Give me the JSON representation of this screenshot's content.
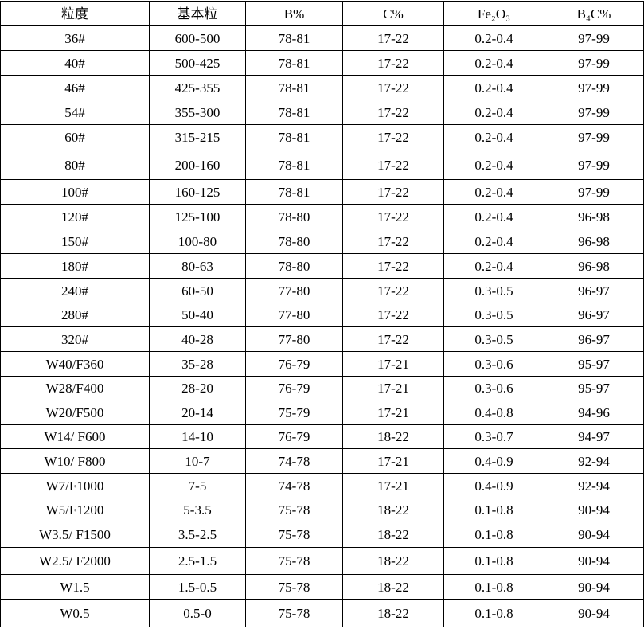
{
  "table": {
    "headers": [
      "粒度",
      "基本粒",
      "B%",
      "C%",
      "Fe₂O₃",
      "B₄C%"
    ],
    "rows": [
      [
        "36#",
        "600-500",
        "78-81",
        "17-22",
        "0.2-0.4",
        "97-99"
      ],
      [
        "40#",
        "500-425",
        "78-81",
        "17-22",
        "0.2-0.4",
        "97-99"
      ],
      [
        "46#",
        "425-355",
        "78-81",
        "17-22",
        "0.2-0.4",
        "97-99"
      ],
      [
        "54#",
        "355-300",
        "78-81",
        "17-22",
        "0.2-0.4",
        "97-99"
      ],
      [
        "60#",
        "315-215",
        "78-81",
        "17-22",
        "0.2-0.4",
        "97-99"
      ],
      [
        "80#",
        "200-160",
        "78-81",
        "17-22",
        "0.2-0.4",
        "97-99"
      ],
      [
        "100#",
        "160-125",
        "78-81",
        "17-22",
        "0.2-0.4",
        "97-99"
      ],
      [
        "120#",
        "125-100",
        "78-80",
        "17-22",
        "0.2-0.4",
        "96-98"
      ],
      [
        "150#",
        "100-80",
        "78-80",
        "17-22",
        "0.2-0.4",
        "96-98"
      ],
      [
        "180#",
        "80-63",
        "78-80",
        "17-22",
        "0.2-0.4",
        "96-98"
      ],
      [
        "240#",
        "60-50",
        "77-80",
        "17-22",
        "0.3-0.5",
        "96-97"
      ],
      [
        "280#",
        "50-40",
        "77-80",
        "17-22",
        "0.3-0.5",
        "96-97"
      ],
      [
        "320#",
        "40-28",
        "77-80",
        "17-22",
        "0.3-0.5",
        "96-97"
      ],
      [
        "W40/F360",
        "35-28",
        "76-79",
        "17-21",
        "0.3-0.6",
        "95-97"
      ],
      [
        "W28/F400",
        "28-20",
        "76-79",
        "17-21",
        "0.3-0.6",
        "95-97"
      ],
      [
        "W20/F500",
        "20-14",
        "75-79",
        "17-21",
        "0.4-0.8",
        "94-96"
      ],
      [
        "W14/ F600",
        "14-10",
        "76-79",
        "18-22",
        "0.3-0.7",
        "94-97"
      ],
      [
        "W10/ F800",
        "10-7",
        "74-78",
        "17-21",
        "0.4-0.9",
        "92-94"
      ],
      [
        "W7/F1000",
        "7-5",
        "74-78",
        "17-21",
        "0.4-0.9",
        "92-94"
      ],
      [
        "W5/F1200",
        "5-3.5",
        "75-78",
        "18-22",
        "0.1-0.8",
        "90-94"
      ],
      [
        "W3.5/ F1500",
        "3.5-2.5",
        "75-78",
        "18-22",
        "0.1-0.8",
        "90-94"
      ],
      [
        "W2.5/ F2000",
        "2.5-1.5",
        "75-78",
        "18-22",
        "0.1-0.8",
        "90-94"
      ],
      [
        "W1.5",
        "1.5-0.5",
        "75-78",
        "18-22",
        "0.1-0.8",
        "90-94"
      ],
      [
        "W0.5",
        "0.5-0",
        "75-78",
        "18-22",
        "0.1-0.8",
        "90-94"
      ]
    ]
  }
}
